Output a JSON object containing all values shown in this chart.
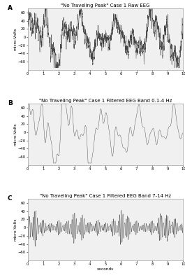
{
  "title_A": "\"No Traveling Peak\" Case 1 Raw EEG",
  "title_B": "\"No Traveling Peak\" Case 1 Filtered EEG Band 0.1-4 Hz",
  "title_C": "\"No Traveling Peak\" Case 1 Filtered EEG Band 7-14 Hz",
  "xlabel": "seconds",
  "ylabel": "micro-Volts",
  "xlim": [
    0,
    10
  ],
  "ylim_A": [
    -80,
    70
  ],
  "ylim_B": [
    -80,
    70
  ],
  "ylim_C": [
    -80,
    70
  ],
  "xticks": [
    0,
    1,
    2,
    3,
    4,
    5,
    6,
    7,
    8,
    9,
    10
  ],
  "yticks_A": [
    -60,
    -40,
    -20,
    0,
    20,
    40,
    60
  ],
  "yticks_B": [
    -60,
    -40,
    -20,
    0,
    20,
    40,
    60
  ],
  "yticks_C": [
    -60,
    -40,
    -20,
    0,
    20,
    40,
    60
  ],
  "line_color": "#444444",
  "bg_color": "#f0f0f0",
  "fig_bg": "#ffffff",
  "title_fontsize": 5.0,
  "label_fontsize": 4.2,
  "tick_fontsize": 3.8,
  "panel_label_fontsize": 6.5,
  "seed": 42,
  "fs": 256,
  "duration": 10
}
